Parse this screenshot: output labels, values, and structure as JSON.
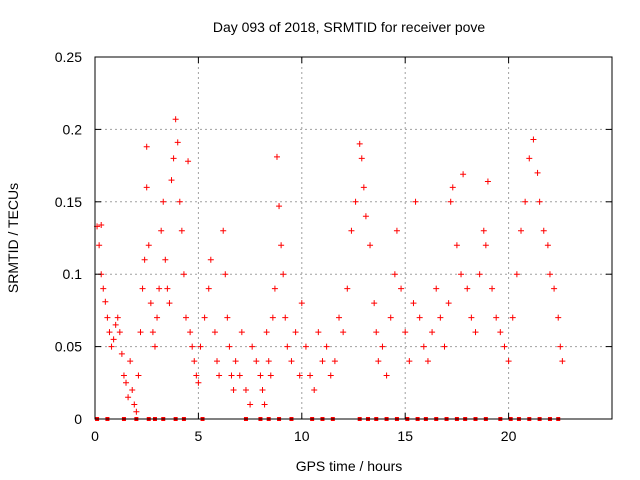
{
  "chart_data": {
    "type": "scatter",
    "title": "Day 093 of 2018, SRMTID for receiver pove",
    "xlabel": "GPS time / hours",
    "ylabel": "SRMTID / TECUs",
    "xlim": [
      0,
      25
    ],
    "ylim": [
      0,
      0.25
    ],
    "xticks": [
      0,
      5,
      10,
      15,
      20
    ],
    "xtick_labels": [
      "0",
      "5",
      "10",
      "15",
      "20"
    ],
    "yticks": [
      0,
      0.05,
      0.1,
      0.15,
      0.2,
      0.25
    ],
    "ytick_labels": [
      "0",
      "0.05",
      "0.1",
      "0.15",
      "0.2",
      "0.25"
    ],
    "grid": true,
    "marker": "+",
    "color": "#ff0000",
    "zero_markers": [
      0.1,
      0.6,
      1.4,
      2.0,
      2.6,
      2.9,
      3.3,
      3.9,
      4.3,
      5.2,
      7.3,
      8.0,
      8.4,
      8.9,
      9.5,
      10.5,
      11.0,
      11.5,
      12.8,
      13.2,
      13.6,
      14.1,
      14.6,
      15.1,
      15.6,
      16.0,
      16.5,
      17.0,
      17.5,
      17.9,
      18.4,
      18.9,
      19.6,
      20.1,
      20.5,
      21.0,
      21.5,
      22.0,
      22.4
    ],
    "points": [
      [
        0.1,
        0.133
      ],
      [
        0.2,
        0.12
      ],
      [
        0.3,
        0.1
      ],
      [
        0.3,
        0.134
      ],
      [
        0.4,
        0.09
      ],
      [
        0.5,
        0.081
      ],
      [
        0.6,
        0.07
      ],
      [
        0.7,
        0.06
      ],
      [
        0.8,
        0.05
      ],
      [
        0.9,
        0.055
      ],
      [
        1.0,
        0.065
      ],
      [
        1.1,
        0.07
      ],
      [
        1.2,
        0.06
      ],
      [
        1.3,
        0.045
      ],
      [
        1.4,
        0.03
      ],
      [
        1.5,
        0.025
      ],
      [
        1.6,
        0.015
      ],
      [
        1.7,
        0.04
      ],
      [
        1.8,
        0.02
      ],
      [
        1.9,
        0.01
      ],
      [
        2.0,
        0.005
      ],
      [
        2.1,
        0.03
      ],
      [
        2.2,
        0.06
      ],
      [
        2.3,
        0.09
      ],
      [
        2.4,
        0.11
      ],
      [
        2.5,
        0.188
      ],
      [
        2.5,
        0.16
      ],
      [
        2.6,
        0.12
      ],
      [
        2.7,
        0.08
      ],
      [
        2.8,
        0.06
      ],
      [
        2.9,
        0.05
      ],
      [
        3.0,
        0.07
      ],
      [
        3.1,
        0.09
      ],
      [
        3.2,
        0.13
      ],
      [
        3.3,
        0.15
      ],
      [
        3.4,
        0.11
      ],
      [
        3.5,
        0.09
      ],
      [
        3.6,
        0.08
      ],
      [
        3.7,
        0.165
      ],
      [
        3.8,
        0.18
      ],
      [
        3.9,
        0.207
      ],
      [
        4.0,
        0.191
      ],
      [
        4.1,
        0.15
      ],
      [
        4.2,
        0.13
      ],
      [
        4.3,
        0.1
      ],
      [
        4.4,
        0.07
      ],
      [
        4.5,
        0.178
      ],
      [
        4.6,
        0.06
      ],
      [
        4.7,
        0.05
      ],
      [
        4.8,
        0.04
      ],
      [
        4.9,
        0.03
      ],
      [
        5.0,
        0.025
      ],
      [
        5.1,
        0.05
      ],
      [
        5.3,
        0.07
      ],
      [
        5.5,
        0.09
      ],
      [
        5.6,
        0.11
      ],
      [
        5.8,
        0.06
      ],
      [
        5.9,
        0.04
      ],
      [
        6.0,
        0.03
      ],
      [
        6.2,
        0.13
      ],
      [
        6.3,
        0.1
      ],
      [
        6.4,
        0.07
      ],
      [
        6.5,
        0.05
      ],
      [
        6.6,
        0.03
      ],
      [
        6.7,
        0.02
      ],
      [
        6.8,
        0.04
      ],
      [
        7.0,
        0.03
      ],
      [
        7.1,
        0.06
      ],
      [
        7.3,
        0.02
      ],
      [
        7.5,
        0.01
      ],
      [
        7.6,
        0.05
      ],
      [
        7.8,
        0.04
      ],
      [
        8.0,
        0.03
      ],
      [
        8.1,
        0.02
      ],
      [
        8.2,
        0.01
      ],
      [
        8.3,
        0.06
      ],
      [
        8.4,
        0.04
      ],
      [
        8.5,
        0.03
      ],
      [
        8.6,
        0.07
      ],
      [
        8.7,
        0.09
      ],
      [
        8.8,
        0.181
      ],
      [
        8.9,
        0.147
      ],
      [
        9.0,
        0.12
      ],
      [
        9.1,
        0.1
      ],
      [
        9.2,
        0.07
      ],
      [
        9.3,
        0.05
      ],
      [
        9.5,
        0.04
      ],
      [
        9.7,
        0.06
      ],
      [
        9.9,
        0.03
      ],
      [
        10.0,
        0.08
      ],
      [
        10.2,
        0.05
      ],
      [
        10.4,
        0.03
      ],
      [
        10.6,
        0.02
      ],
      [
        10.8,
        0.06
      ],
      [
        11.0,
        0.04
      ],
      [
        11.2,
        0.05
      ],
      [
        11.4,
        0.03
      ],
      [
        11.6,
        0.04
      ],
      [
        11.8,
        0.07
      ],
      [
        12.0,
        0.06
      ],
      [
        12.2,
        0.09
      ],
      [
        12.4,
        0.13
      ],
      [
        12.6,
        0.15
      ],
      [
        12.8,
        0.19
      ],
      [
        12.9,
        0.18
      ],
      [
        13.0,
        0.16
      ],
      [
        13.1,
        0.14
      ],
      [
        13.3,
        0.12
      ],
      [
        13.5,
        0.08
      ],
      [
        13.6,
        0.06
      ],
      [
        13.7,
        0.04
      ],
      [
        13.9,
        0.05
      ],
      [
        14.1,
        0.03
      ],
      [
        14.3,
        0.07
      ],
      [
        14.5,
        0.1
      ],
      [
        14.6,
        0.13
      ],
      [
        14.8,
        0.09
      ],
      [
        15.0,
        0.06
      ],
      [
        15.2,
        0.04
      ],
      [
        15.4,
        0.08
      ],
      [
        15.5,
        0.15
      ],
      [
        15.7,
        0.07
      ],
      [
        15.9,
        0.05
      ],
      [
        16.1,
        0.04
      ],
      [
        16.3,
        0.06
      ],
      [
        16.5,
        0.09
      ],
      [
        16.7,
        0.07
      ],
      [
        16.9,
        0.05
      ],
      [
        17.1,
        0.08
      ],
      [
        17.2,
        0.15
      ],
      [
        17.3,
        0.16
      ],
      [
        17.5,
        0.12
      ],
      [
        17.7,
        0.1
      ],
      [
        17.8,
        0.169
      ],
      [
        18.0,
        0.09
      ],
      [
        18.2,
        0.07
      ],
      [
        18.4,
        0.06
      ],
      [
        18.6,
        0.1
      ],
      [
        18.8,
        0.13
      ],
      [
        18.9,
        0.12
      ],
      [
        19.0,
        0.164
      ],
      [
        19.2,
        0.09
      ],
      [
        19.4,
        0.07
      ],
      [
        19.6,
        0.06
      ],
      [
        19.8,
        0.05
      ],
      [
        20.0,
        0.04
      ],
      [
        20.2,
        0.07
      ],
      [
        20.4,
        0.1
      ],
      [
        20.6,
        0.13
      ],
      [
        20.8,
        0.15
      ],
      [
        21.0,
        0.18
      ],
      [
        21.2,
        0.193
      ],
      [
        21.4,
        0.17
      ],
      [
        21.5,
        0.15
      ],
      [
        21.7,
        0.13
      ],
      [
        21.9,
        0.12
      ],
      [
        22.0,
        0.1
      ],
      [
        22.2,
        0.09
      ],
      [
        22.4,
        0.07
      ],
      [
        22.5,
        0.05
      ],
      [
        22.6,
        0.04
      ]
    ]
  }
}
